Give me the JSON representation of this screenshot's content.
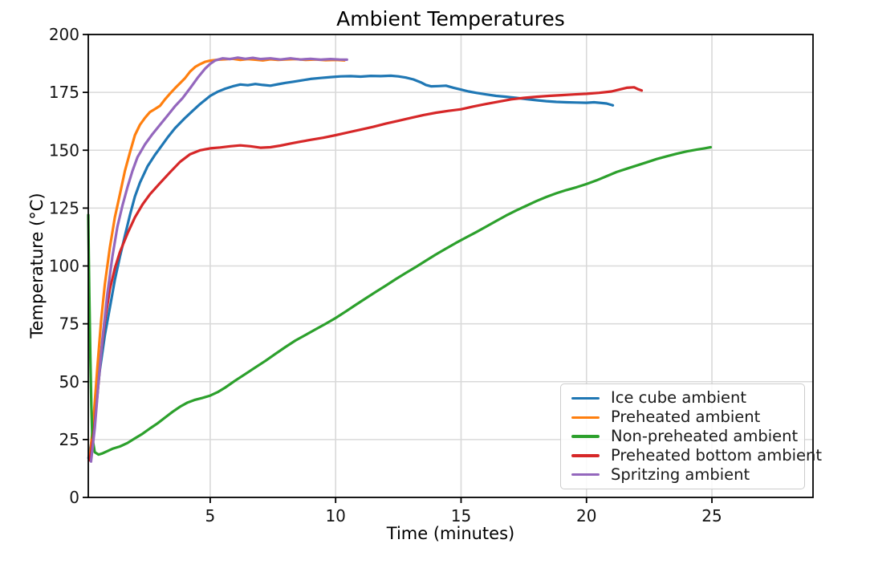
{
  "title": "Ambient Temperatures",
  "colors": {
    "grid": "#d9d9d9",
    "spine": "#000000",
    "tick_label": "#141414",
    "legend_border": "#cccccc"
  },
  "chart_data": {
    "type": "line",
    "title": "Ambient Temperatures",
    "xlabel": "Time (minutes)",
    "ylabel": "Temperature (°C)",
    "xlim": [
      0.14,
      29.03
    ],
    "ylim": [
      0,
      200
    ],
    "x_ticks": [
      5,
      10,
      15,
      20,
      25
    ],
    "y_ticks": [
      0,
      25,
      50,
      75,
      100,
      125,
      150,
      175,
      200
    ],
    "grid": true,
    "legend_position": "lower right",
    "series": [
      {
        "name": "Ice cube ambient",
        "color": "#1f77b4",
        "points": [
          [
            0.15,
            17
          ],
          [
            0.3,
            26
          ],
          [
            0.45,
            40
          ],
          [
            0.6,
            55
          ],
          [
            0.8,
            70
          ],
          [
            1.0,
            82
          ],
          [
            1.2,
            94
          ],
          [
            1.4,
            104
          ],
          [
            1.6,
            113
          ],
          [
            1.8,
            122
          ],
          [
            2.0,
            130
          ],
          [
            2.2,
            136
          ],
          [
            2.5,
            143
          ],
          [
            2.8,
            148
          ],
          [
            3.0,
            151
          ],
          [
            3.3,
            155.5
          ],
          [
            3.6,
            159.5
          ],
          [
            4.0,
            164
          ],
          [
            4.3,
            167
          ],
          [
            4.6,
            170
          ],
          [
            5.0,
            173.5
          ],
          [
            5.3,
            175.3
          ],
          [
            5.6,
            176.6
          ],
          [
            5.9,
            177.6
          ],
          [
            6.2,
            178.4
          ],
          [
            6.5,
            178.1
          ],
          [
            6.8,
            178.6
          ],
          [
            7.1,
            178.2
          ],
          [
            7.4,
            177.9
          ],
          [
            7.7,
            178.5
          ],
          [
            8.0,
            179.1
          ],
          [
            8.3,
            179.6
          ],
          [
            8.6,
            180.1
          ],
          [
            9.0,
            180.8
          ],
          [
            9.4,
            181.2
          ],
          [
            9.8,
            181.6
          ],
          [
            10.2,
            181.9
          ],
          [
            10.6,
            182.0
          ],
          [
            11.0,
            181.8
          ],
          [
            11.4,
            182.1
          ],
          [
            11.8,
            182.0
          ],
          [
            12.2,
            182.2
          ],
          [
            12.5,
            181.9
          ],
          [
            12.8,
            181.4
          ],
          [
            13.1,
            180.6
          ],
          [
            13.4,
            179.3
          ],
          [
            13.6,
            178.2
          ],
          [
            13.8,
            177.6
          ],
          [
            14.1,
            177.7
          ],
          [
            14.4,
            177.9
          ],
          [
            14.7,
            177.0
          ],
          [
            15.0,
            176.2
          ],
          [
            15.3,
            175.4
          ],
          [
            15.6,
            174.8
          ],
          [
            16.0,
            174.1
          ],
          [
            16.4,
            173.5
          ],
          [
            16.8,
            173.1
          ],
          [
            17.2,
            172.6
          ],
          [
            17.6,
            172.1
          ],
          [
            18.0,
            171.6
          ],
          [
            18.4,
            171.2
          ],
          [
            18.8,
            170.9
          ],
          [
            19.2,
            170.7
          ],
          [
            19.6,
            170.6
          ],
          [
            20.0,
            170.5
          ],
          [
            20.3,
            170.7
          ],
          [
            20.6,
            170.4
          ],
          [
            20.8,
            170.2
          ],
          [
            21.05,
            169.4
          ]
        ]
      },
      {
        "name": "Preheated ambient",
        "color": "#ff7f0e",
        "points": [
          [
            0.2,
            17
          ],
          [
            0.35,
            34
          ],
          [
            0.5,
            56
          ],
          [
            0.65,
            76
          ],
          [
            0.8,
            92
          ],
          [
            1.0,
            108
          ],
          [
            1.2,
            121
          ],
          [
            1.4,
            131
          ],
          [
            1.6,
            141
          ],
          [
            1.8,
            149
          ],
          [
            2.0,
            156.5
          ],
          [
            2.2,
            161
          ],
          [
            2.4,
            164
          ],
          [
            2.6,
            166.5
          ],
          [
            2.8,
            167.8
          ],
          [
            3.0,
            169.2
          ],
          [
            3.2,
            172
          ],
          [
            3.4,
            174.5
          ],
          [
            3.6,
            176.8
          ],
          [
            3.8,
            179
          ],
          [
            4.0,
            181.2
          ],
          [
            4.2,
            184
          ],
          [
            4.4,
            186
          ],
          [
            4.6,
            187.2
          ],
          [
            4.8,
            188.2
          ],
          [
            5.0,
            188.7
          ],
          [
            5.3,
            189.1
          ],
          [
            5.6,
            189.3
          ],
          [
            5.9,
            189.5
          ],
          [
            6.2,
            189.0
          ],
          [
            6.5,
            189.4
          ],
          [
            6.8,
            189.1
          ],
          [
            7.1,
            188.8
          ],
          [
            7.4,
            189.3
          ],
          [
            7.7,
            189.0
          ],
          [
            8.0,
            189.2
          ],
          [
            8.4,
            189.4
          ],
          [
            8.8,
            189.0
          ],
          [
            9.2,
            189.2
          ],
          [
            9.6,
            188.9
          ],
          [
            10.0,
            189.0
          ],
          [
            10.35,
            188.8
          ]
        ]
      },
      {
        "name": "Non-preheated ambient",
        "color": "#2ca02c",
        "points": [
          [
            0.14,
            122
          ],
          [
            0.16,
            105
          ],
          [
            0.18,
            88
          ],
          [
            0.22,
            62
          ],
          [
            0.26,
            40
          ],
          [
            0.3,
            26
          ],
          [
            0.4,
            19.5
          ],
          [
            0.55,
            18.5
          ],
          [
            0.7,
            19
          ],
          [
            0.9,
            20
          ],
          [
            1.1,
            21
          ],
          [
            1.4,
            22
          ],
          [
            1.7,
            23.5
          ],
          [
            2.0,
            25.5
          ],
          [
            2.3,
            27.5
          ],
          [
            2.6,
            29.8
          ],
          [
            2.9,
            32
          ],
          [
            3.2,
            34.5
          ],
          [
            3.5,
            37
          ],
          [
            3.8,
            39.2
          ],
          [
            4.1,
            41
          ],
          [
            4.4,
            42.2
          ],
          [
            4.7,
            43
          ],
          [
            5.0,
            44
          ],
          [
            5.3,
            45.5
          ],
          [
            5.6,
            47.5
          ],
          [
            6.0,
            50.5
          ],
          [
            6.4,
            53.3
          ],
          [
            6.8,
            56.2
          ],
          [
            7.2,
            59
          ],
          [
            7.6,
            62
          ],
          [
            8.0,
            65
          ],
          [
            8.4,
            67.8
          ],
          [
            8.8,
            70.2
          ],
          [
            9.2,
            72.6
          ],
          [
            9.6,
            75
          ],
          [
            10.0,
            77.5
          ],
          [
            10.4,
            80.3
          ],
          [
            10.8,
            83.2
          ],
          [
            11.2,
            86
          ],
          [
            11.6,
            88.8
          ],
          [
            12.0,
            91.5
          ],
          [
            12.4,
            94.3
          ],
          [
            12.8,
            97
          ],
          [
            13.2,
            99.6
          ],
          [
            13.6,
            102.3
          ],
          [
            14.0,
            105
          ],
          [
            14.4,
            107.5
          ],
          [
            14.8,
            110
          ],
          [
            15.2,
            112.3
          ],
          [
            15.6,
            114.6
          ],
          [
            16.0,
            117
          ],
          [
            16.4,
            119.4
          ],
          [
            16.8,
            121.8
          ],
          [
            17.2,
            124
          ],
          [
            17.6,
            126
          ],
          [
            18.0,
            128
          ],
          [
            18.4,
            129.8
          ],
          [
            18.8,
            131.4
          ],
          [
            19.2,
            132.8
          ],
          [
            19.6,
            134
          ],
          [
            20.0,
            135.4
          ],
          [
            20.4,
            137
          ],
          [
            20.8,
            138.8
          ],
          [
            21.2,
            140.6
          ],
          [
            21.6,
            142
          ],
          [
            22.0,
            143.4
          ],
          [
            22.4,
            144.8
          ],
          [
            22.8,
            146.2
          ],
          [
            23.2,
            147.4
          ],
          [
            23.6,
            148.5
          ],
          [
            24.0,
            149.5
          ],
          [
            24.4,
            150.3
          ],
          [
            24.7,
            150.8
          ],
          [
            24.95,
            151.3
          ]
        ]
      },
      {
        "name": "Preheated bottom ambient",
        "color": "#d62728",
        "points": [
          [
            0.2,
            16
          ],
          [
            0.35,
            27
          ],
          [
            0.5,
            44
          ],
          [
            0.65,
            62
          ],
          [
            0.8,
            76
          ],
          [
            1.0,
            90
          ],
          [
            1.2,
            99
          ],
          [
            1.4,
            106
          ],
          [
            1.7,
            114
          ],
          [
            2.0,
            121
          ],
          [
            2.3,
            126.5
          ],
          [
            2.6,
            131
          ],
          [
            3.0,
            135.8
          ],
          [
            3.4,
            140.5
          ],
          [
            3.8,
            145
          ],
          [
            4.2,
            148.3
          ],
          [
            4.6,
            150
          ],
          [
            5.0,
            150.8
          ],
          [
            5.4,
            151.2
          ],
          [
            5.8,
            151.7
          ],
          [
            6.2,
            152.1
          ],
          [
            6.6,
            151.7
          ],
          [
            7.0,
            151.1
          ],
          [
            7.4,
            151.3
          ],
          [
            7.8,
            152
          ],
          [
            8.2,
            152.9
          ],
          [
            8.6,
            153.7
          ],
          [
            9.0,
            154.5
          ],
          [
            9.5,
            155.4
          ],
          [
            10.0,
            156.5
          ],
          [
            10.5,
            157.7
          ],
          [
            11.0,
            158.9
          ],
          [
            11.5,
            160.1
          ],
          [
            12.0,
            161.5
          ],
          [
            12.5,
            162.7
          ],
          [
            13.0,
            164
          ],
          [
            13.5,
            165.2
          ],
          [
            14.0,
            166.2
          ],
          [
            14.5,
            167
          ],
          [
            15.0,
            167.7
          ],
          [
            15.5,
            168.9
          ],
          [
            16.0,
            170
          ],
          [
            16.5,
            171
          ],
          [
            17.0,
            172
          ],
          [
            17.5,
            172.6
          ],
          [
            18.0,
            173.1
          ],
          [
            18.5,
            173.5
          ],
          [
            19.0,
            173.8
          ],
          [
            19.5,
            174.1
          ],
          [
            20.0,
            174.4
          ],
          [
            20.5,
            174.8
          ],
          [
            21.0,
            175.4
          ],
          [
            21.3,
            176.2
          ],
          [
            21.6,
            177
          ],
          [
            21.9,
            177.2
          ],
          [
            22.05,
            176.4
          ],
          [
            22.2,
            175.8
          ]
        ]
      },
      {
        "name": "Spritzing ambient",
        "color": "#9467bd",
        "points": [
          [
            0.25,
            15.5
          ],
          [
            0.4,
            30
          ],
          [
            0.55,
            50
          ],
          [
            0.7,
            68
          ],
          [
            0.9,
            88
          ],
          [
            1.1,
            104
          ],
          [
            1.3,
            117
          ],
          [
            1.5,
            126
          ],
          [
            1.7,
            134
          ],
          [
            1.9,
            141
          ],
          [
            2.1,
            147
          ],
          [
            2.4,
            152.5
          ],
          [
            2.7,
            157
          ],
          [
            3.0,
            161
          ],
          [
            3.3,
            165
          ],
          [
            3.6,
            169
          ],
          [
            3.9,
            172.5
          ],
          [
            4.2,
            176.8
          ],
          [
            4.5,
            181.3
          ],
          [
            4.8,
            185.3
          ],
          [
            5.0,
            187.3
          ],
          [
            5.2,
            188.8
          ],
          [
            5.5,
            189.7
          ],
          [
            5.8,
            189.4
          ],
          [
            6.1,
            190.0
          ],
          [
            6.4,
            189.5
          ],
          [
            6.7,
            189.9
          ],
          [
            7.0,
            189.4
          ],
          [
            7.4,
            189.7
          ],
          [
            7.8,
            189.2
          ],
          [
            8.2,
            189.7
          ],
          [
            8.6,
            189.2
          ],
          [
            9.0,
            189.5
          ],
          [
            9.4,
            189.1
          ],
          [
            9.8,
            189.4
          ],
          [
            10.15,
            189.2
          ],
          [
            10.45,
            189.1
          ]
        ]
      }
    ]
  }
}
